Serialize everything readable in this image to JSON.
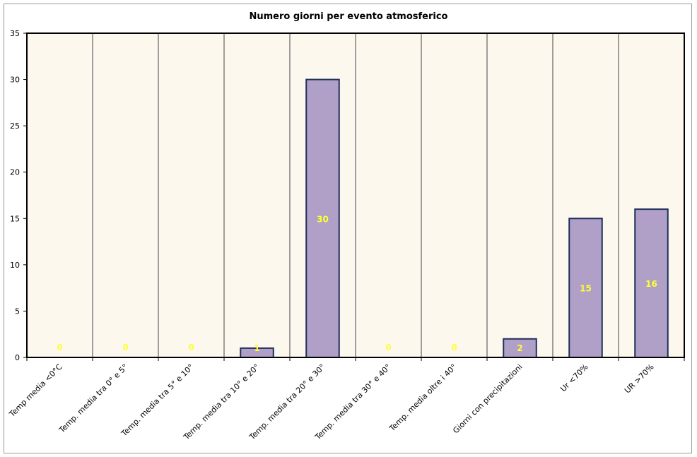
{
  "chart_data": {
    "type": "bar",
    "title": "Numero giorni per evento atmosferico",
    "xlabel": "",
    "ylabel": "",
    "categories": [
      "Temp media <0°C",
      "Temp. media tra 0° e 5°",
      "Temp. media tra 5° e 10°",
      "Temp. media tra 10° e 20°",
      "Temp. media tra 20° e 30°",
      "Temp. media tra 30° e 40°",
      "Temp. media oltre i 40°",
      "Giorni con precipitazioni",
      "Ur <70%",
      "UR >70%"
    ],
    "values": [
      0,
      0,
      0,
      1,
      30,
      0,
      0,
      2,
      15,
      16
    ],
    "data_labels": [
      "0",
      "0",
      "0",
      "1",
      "30",
      "0",
      "0",
      "2",
      "15",
      "16"
    ],
    "ylim": [
      0,
      35
    ],
    "yticks": [
      0,
      5,
      10,
      15,
      20,
      25,
      30,
      35
    ],
    "ytick_labels": [
      "0",
      "5",
      "10",
      "15",
      "20",
      "25",
      "30",
      "35"
    ],
    "grid": "vertical",
    "colors": {
      "bar_fill": "#b0a0c8",
      "bar_stroke": "#1f2f5a",
      "plot_bg": "#fdf8ee",
      "data_label": "#ffff33",
      "gridline": "#808080"
    }
  }
}
